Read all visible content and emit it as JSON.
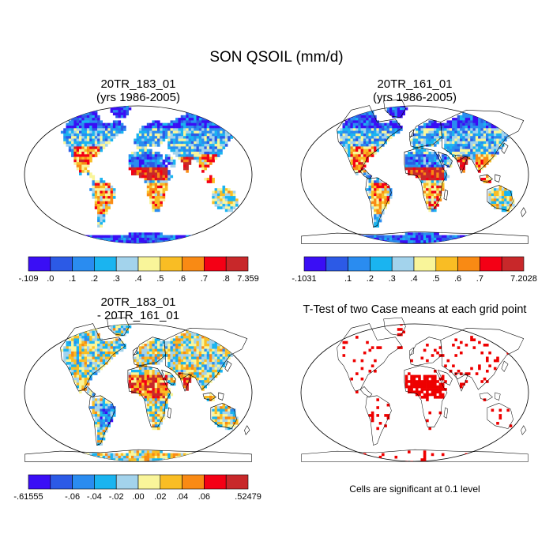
{
  "title": "SON QSOIL (mm/d)",
  "panels": [
    {
      "id": "p1",
      "title_line1": "20TR_183_01",
      "title_line2": "(yrs 1986-2005)",
      "scheme": "sequential",
      "colorbar": {
        "colors": [
          "#3a0ef5",
          "#2c5ae6",
          "#2a8cf0",
          "#1ab4f0",
          "#a3d3ec",
          "#f9f59a",
          "#f9bd24",
          "#f98a14",
          "#f40015",
          "#c8282a"
        ],
        "labels": [
          "-.109",
          ".0",
          ".1",
          ".2",
          ".3",
          ".4",
          ".5",
          ".6",
          ".7",
          ".8",
          "7.359"
        ]
      }
    },
    {
      "id": "p2",
      "title_line1": "20TR_161_01",
      "title_line2": "(yrs 1986-2005)",
      "scheme": "sequential",
      "colorbar": {
        "colors": [
          "#3a0ef5",
          "#2c5ae6",
          "#2a8cf0",
          "#1ab4f0",
          "#a3d3ec",
          "#f9f59a",
          "#f9bd24",
          "#f98a14",
          "#f40015",
          "#c8282a"
        ],
        "labels": [
          "-.1031",
          "",
          ".1",
          ".2",
          ".3",
          ".4",
          ".5",
          ".6",
          ".7",
          "",
          "7.2028"
        ]
      }
    },
    {
      "id": "p3",
      "title_line1": "20TR_183_01",
      "title_line2": "- 20TR_161_01",
      "scheme": "difference",
      "colorbar": {
        "colors": [
          "#3a0ef5",
          "#2c5ae6",
          "#2a8cf0",
          "#1ab4f0",
          "#a3d3ec",
          "#f9f59a",
          "#f9bd24",
          "#f98a14",
          "#f40015",
          "#c8282a"
        ],
        "labels": [
          "-.61555",
          "",
          "-.06",
          "-.04",
          "-.02",
          ".00",
          ".02",
          ".04",
          ".06",
          "",
          ".52479"
        ]
      }
    },
    {
      "id": "p4",
      "title_line1": "T-Test of two Case means at each grid point",
      "scheme": "ttest",
      "note": "Cells are significant at 0.1 level",
      "colors": {
        "significant": "#ee0000"
      }
    }
  ]
}
